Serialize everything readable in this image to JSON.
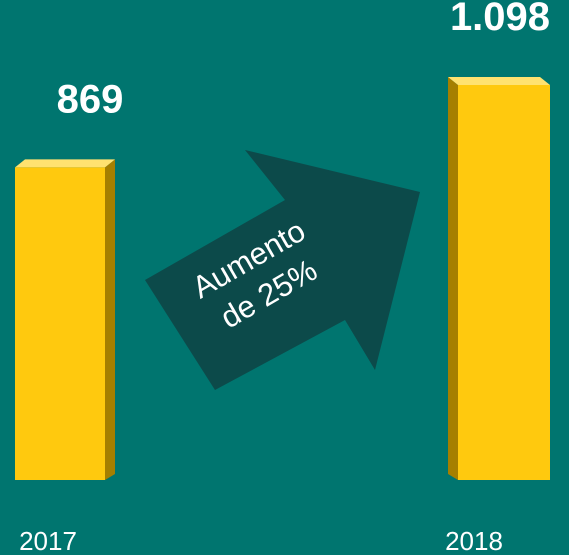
{
  "chart_data": {
    "type": "bar",
    "categories": [
      "2017",
      "2018"
    ],
    "values": [
      869,
      1098
    ],
    "value_labels": [
      "869",
      "1.098"
    ],
    "color": "#ffc90e",
    "annotations": [
      "Aumento",
      "de 25%"
    ]
  }
}
